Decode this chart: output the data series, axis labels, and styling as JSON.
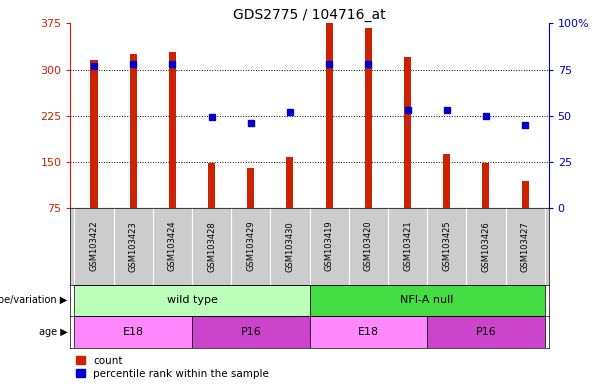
{
  "title": "GDS2775 / 104716_at",
  "samples": [
    "GSM103422",
    "GSM103423",
    "GSM103424",
    "GSM103428",
    "GSM103429",
    "GSM103430",
    "GSM103419",
    "GSM103420",
    "GSM103421",
    "GSM103425",
    "GSM103426",
    "GSM103427"
  ],
  "counts": [
    315,
    325,
    328,
    148,
    140,
    157,
    375,
    368,
    320,
    163,
    148,
    118
  ],
  "percentile_ranks": [
    77,
    78,
    78,
    49,
    46,
    52,
    78,
    78,
    53,
    53,
    50,
    45
  ],
  "ymin": 75,
  "ymax": 375,
  "yticks_left": [
    75,
    150,
    225,
    300,
    375
  ],
  "yticks_right": [
    0,
    25,
    50,
    75,
    100
  ],
  "bar_color": "#cc2200",
  "dot_color": "#0000cc",
  "genotype_groups": [
    {
      "label": "wild type",
      "start": 0,
      "end": 6,
      "color": "#bbffbb"
    },
    {
      "label": "NFI-A null",
      "start": 6,
      "end": 12,
      "color": "#44dd44"
    }
  ],
  "age_groups": [
    {
      "label": "E18",
      "start": 0,
      "end": 3,
      "color": "#ff88ff"
    },
    {
      "label": "P16",
      "start": 3,
      "end": 6,
      "color": "#cc44cc"
    },
    {
      "label": "E18",
      "start": 6,
      "end": 9,
      "color": "#ff88ff"
    },
    {
      "label": "P16",
      "start": 9,
      "end": 12,
      "color": "#cc44cc"
    }
  ],
  "legend_count_label": "count",
  "legend_pct_label": "percentile rank within the sample",
  "left_axis_color": "#cc2200",
  "right_axis_color": "#0000cc",
  "genotype_label": "genotype/variation",
  "age_label": "age",
  "names_bg": "#cccccc",
  "divider_color": "#ffffff",
  "hgrid_yticks": [
    150,
    225,
    300
  ]
}
